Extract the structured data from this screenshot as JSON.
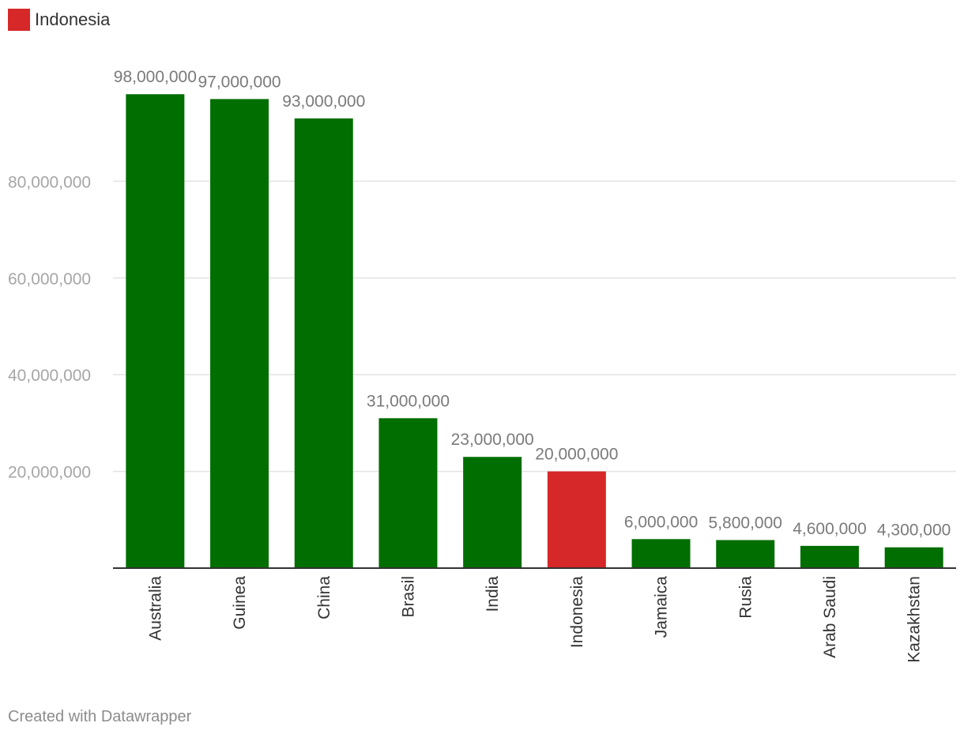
{
  "legend": {
    "label": "Indonesia",
    "color": "#d62828"
  },
  "footer": {
    "credit": "Created with Datawrapper"
  },
  "chart_data": {
    "type": "bar",
    "title": "",
    "xlabel": "",
    "ylabel": "",
    "ylim": [
      0,
      100000000
    ],
    "grid": true,
    "categories": [
      "Australia",
      "Guinea",
      "China",
      "Brasil",
      "India",
      "Indonesia",
      "Jamaica",
      "Rusia",
      "Arab Saudi",
      "Kazakhstan"
    ],
    "values": [
      98000000,
      97000000,
      93000000,
      31000000,
      23000000,
      20000000,
      6000000,
      5800000,
      4600000,
      4300000
    ],
    "data_labels": [
      "98,000,000",
      "97,000,000",
      "93,000,000",
      "31,000,000",
      "23,000,000",
      "20,000,000",
      "6,000,000",
      "5,800,000",
      "4,600,000",
      "4,300,000"
    ],
    "highlight": "Indonesia",
    "colors": {
      "default": "#006e00",
      "highlight": "#d62828",
      "grid": "#e3e3e3",
      "axis": "#333333"
    },
    "yticks": [
      20000000,
      40000000,
      60000000,
      80000000
    ],
    "ytick_labels": [
      "20,000,000",
      "40,000,000",
      "60,000,000",
      "80,000,000"
    ]
  }
}
